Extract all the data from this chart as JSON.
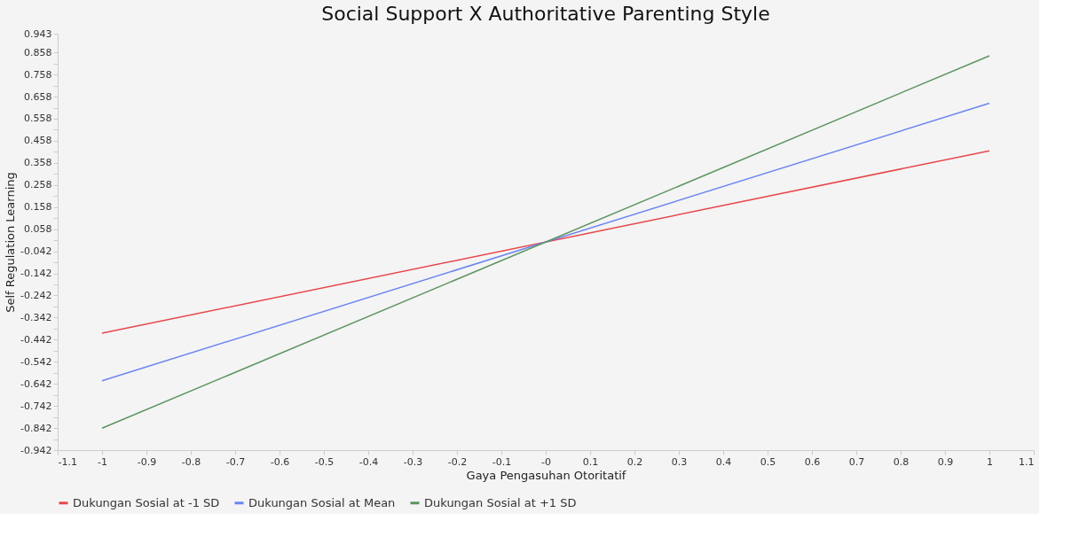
{
  "chart_data": {
    "type": "line",
    "title": "Social Support X Authoritative Parenting Style",
    "xlabel": "Gaya Pengasuhan Otoritatif",
    "ylabel": "Self Regulation Learning",
    "x": [
      -1,
      1
    ],
    "series": [
      {
        "name": "Dukungan Sosial at -1 SD",
        "color": "#e8474a",
        "values": [
          -0.413,
          0.413
        ]
      },
      {
        "name": "Dukungan Sosial at Mean",
        "color": "#6b84f0",
        "values": [
          -0.628,
          0.628
        ]
      },
      {
        "name": "Dukungan Sosial at +1 SD",
        "color": "#5d9460",
        "values": [
          -0.843,
          0.843
        ]
      }
    ],
    "xlim": [
      -1.1,
      1.1
    ],
    "xticks": [
      -1.1,
      -1,
      -0.9,
      -0.8,
      -0.7,
      -0.6,
      -0.5,
      -0.4,
      -0.3,
      -0.2,
      -0.1,
      {
        "value": 0,
        "label": "-0"
      },
      0.1,
      0.2,
      0.3,
      0.4,
      0.5,
      0.6,
      0.7,
      0.8,
      0.9,
      1,
      1.1
    ],
    "ylim": [
      -0.942,
      0.943
    ],
    "yticks": [
      0.943,
      0.858,
      {
        "value": 0.808,
        "label": null
      },
      0.758,
      {
        "value": 0.708,
        "label": null
      },
      0.658,
      {
        "value": 0.608,
        "label": null
      },
      0.558,
      {
        "value": 0.508,
        "label": null
      },
      0.458,
      {
        "value": 0.408,
        "label": null
      },
      0.358,
      {
        "value": 0.308,
        "label": null
      },
      0.258,
      {
        "value": 0.208,
        "label": null
      },
      0.158,
      {
        "value": 0.108,
        "label": null
      },
      0.058,
      {
        "value": 0.008,
        "label": null
      },
      -0.042,
      {
        "value": -0.092,
        "label": null
      },
      -0.142,
      {
        "value": -0.192,
        "label": null
      },
      -0.242,
      {
        "value": -0.292,
        "label": null
      },
      -0.342,
      {
        "value": -0.392,
        "label": null
      },
      -0.442,
      {
        "value": -0.492,
        "label": null
      },
      -0.542,
      {
        "value": -0.592,
        "label": null
      },
      -0.642,
      {
        "value": -0.692,
        "label": null
      },
      -0.742,
      {
        "value": -0.792,
        "label": null
      },
      -0.842,
      {
        "value": -0.892,
        "label": null
      },
      -0.942
    ],
    "grid": false,
    "legend": "bottom",
    "marker": "none",
    "line_style": "solid"
  }
}
